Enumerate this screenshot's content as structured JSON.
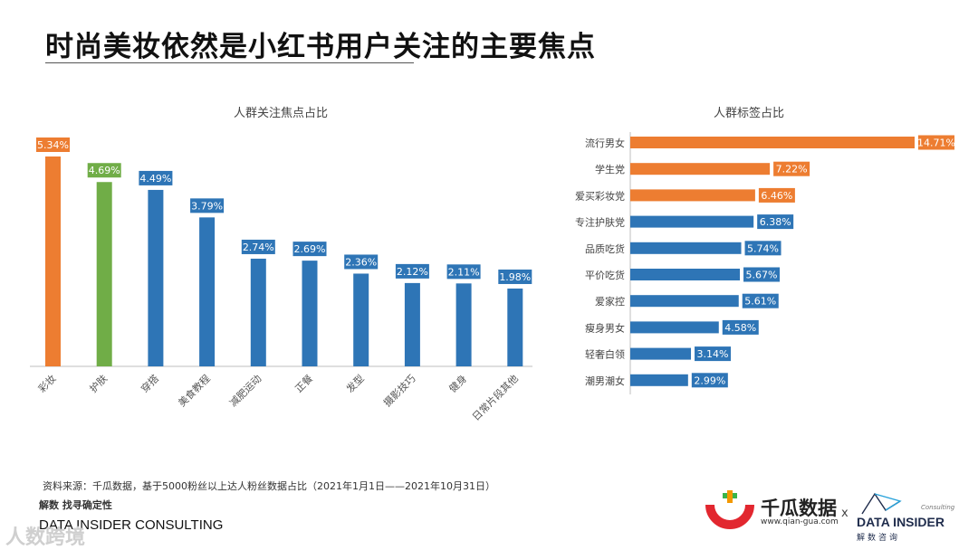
{
  "page": {
    "title": "时尚美妆依然是小红书用户关注的主要焦点",
    "source_note": "资料来源：千瓜数据，基于5000粉丝以上达人粉丝数据占比（2021年1月1日——2021年10月31日）",
    "tagline": "解数 找寻确定性",
    "brand": "DATA INSIDER CONSULTING",
    "watermark": "人数跨境"
  },
  "logos": {
    "qiangua_name": "千瓜数据",
    "qiangua_url": "www.qian-gua.com",
    "separator": "x",
    "datainsider_name": "DATA INSIDER",
    "datainsider_sub": "解数咨询",
    "datainsider_consulting": "Consulting"
  },
  "colors": {
    "orange": "#ED7D31",
    "green": "#70AD47",
    "blue": "#2E75B6"
  },
  "chart_data": [
    {
      "type": "bar",
      "orientation": "vertical",
      "title": "人群关注焦点占比",
      "categories": [
        "彩妆",
        "护肤",
        "穿搭",
        "美食教程",
        "减肥运动",
        "正餐",
        "发型",
        "摄影技巧",
        "健身",
        "日常片段其他"
      ],
      "values": [
        5.34,
        4.69,
        4.49,
        3.79,
        2.74,
        2.69,
        2.36,
        2.12,
        2.11,
        1.98
      ],
      "labels": [
        "5.34%",
        "4.69%",
        "4.49%",
        "3.79%",
        "2.74%",
        "2.69%",
        "2.36%",
        "2.12%",
        "2.11%",
        "1.98%"
      ],
      "bar_colors": [
        "orange",
        "green",
        "blue",
        "blue",
        "blue",
        "blue",
        "blue",
        "blue",
        "blue",
        "blue"
      ],
      "unit": "%",
      "ylim": [
        0,
        5.5
      ],
      "grid": false
    },
    {
      "type": "bar",
      "orientation": "horizontal",
      "title": "人群标签占比",
      "categories": [
        "流行男女",
        "学生党",
        "爱买彩妆党",
        "专注护肤党",
        "品质吃货",
        "平价吃货",
        "爱家控",
        "瘦身男女",
        "轻奢白领",
        "潮男潮女"
      ],
      "values": [
        14.71,
        7.22,
        6.46,
        6.38,
        5.74,
        5.67,
        5.61,
        4.58,
        3.14,
        2.99
      ],
      "labels": [
        "14.71%",
        "7.22%",
        "6.46%",
        "6.38%",
        "5.74%",
        "5.67%",
        "5.61%",
        "4.58%",
        "3.14%",
        "2.99%"
      ],
      "bar_colors": [
        "orange",
        "orange",
        "orange",
        "blue",
        "blue",
        "blue",
        "blue",
        "blue",
        "blue",
        "blue"
      ],
      "unit": "%",
      "xlim": [
        0,
        14.71
      ],
      "grid": false
    }
  ]
}
